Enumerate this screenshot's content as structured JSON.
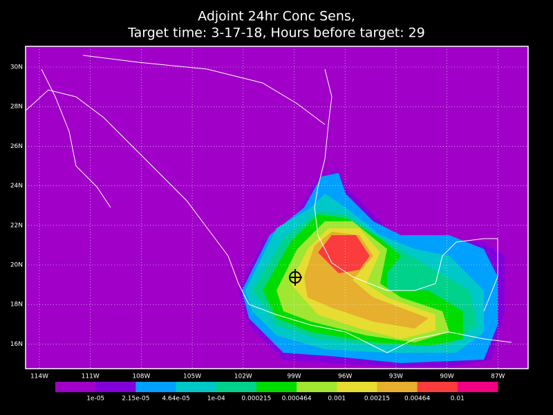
{
  "title": [
    "Adjoint 24hr Conc Sens,",
    "Target time: 3-17-18, Hours before target: 29"
  ],
  "map": {
    "lat_labels": [
      "30N",
      "28N",
      "26N",
      "24N",
      "22N",
      "20N",
      "18N",
      "16N"
    ],
    "lon_labels": [
      "114W",
      "111W",
      "108W",
      "105W",
      "102W",
      "99W",
      "96W",
      "93W",
      "90W",
      "87W"
    ]
  },
  "colorbar": {
    "colors": [
      "#a000c8",
      "#8200dc",
      "#00a0ff",
      "#00c8c8",
      "#00d28c",
      "#00dc00",
      "#a0e632",
      "#e6dc32",
      "#e6af2d",
      "#fa3c3c",
      "#f00082"
    ],
    "labels": [
      "1e-05",
      "2.15e-05",
      "4.64e-05",
      "1e-04",
      "0.000215",
      "0.000464",
      "0.001",
      "0.00215",
      "0.00464",
      "0.01"
    ]
  }
}
